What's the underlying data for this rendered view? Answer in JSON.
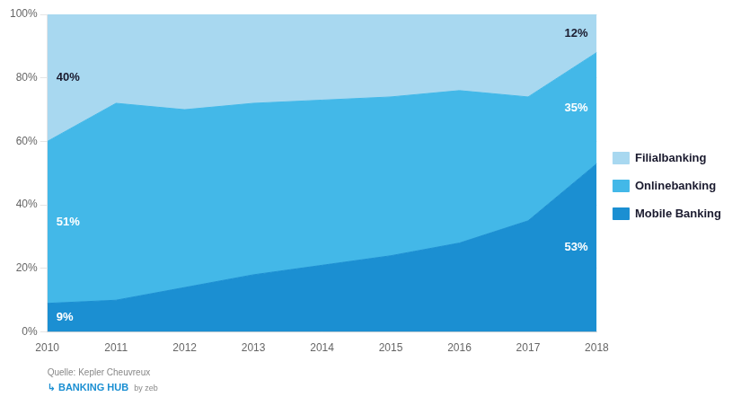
{
  "chart_data": {
    "type": "area",
    "stacked": true,
    "x": [
      2010,
      2011,
      2012,
      2013,
      2014,
      2015,
      2016,
      2017,
      2018
    ],
    "xlim": [
      2010,
      2018
    ],
    "xticks": [
      2010,
      2011,
      2012,
      2013,
      2014,
      2015,
      2016,
      2017,
      2018
    ],
    "ylim": [
      0,
      100
    ],
    "yticks": [
      {
        "value": 0,
        "label": "0%"
      },
      {
        "value": 20,
        "label": "20%"
      },
      {
        "value": 40,
        "label": "40%"
      },
      {
        "value": 60,
        "label": "60%"
      },
      {
        "value": 80,
        "label": "80%"
      },
      {
        "value": 100,
        "label": "100%"
      }
    ],
    "grid": true,
    "legend": "right",
    "series": [
      {
        "name": "Mobile Banking",
        "color": "#1B8FD2",
        "values": [
          9,
          10,
          14,
          18,
          21,
          24,
          28,
          35,
          53
        ],
        "value_labels": [
          "9%",
          null,
          null,
          null,
          null,
          null,
          null,
          null,
          "53%"
        ]
      },
      {
        "name": "Onlinebanking",
        "color": "#43B8E8",
        "values": [
          51,
          62,
          56,
          54,
          52,
          50,
          48,
          39,
          35
        ],
        "value_labels": [
          "51%",
          null,
          null,
          null,
          null,
          null,
          null,
          null,
          "35%"
        ]
      },
      {
        "name": "Filialbanking",
        "color": "#A8D8F0",
        "values": [
          40,
          28,
          30,
          28,
          27,
          26,
          24,
          26,
          12
        ],
        "value_labels": [
          "40%",
          null,
          null,
          null,
          null,
          null,
          null,
          null,
          "12%"
        ]
      }
    ],
    "annotations": [
      "Quelle: Kepler Cheuvreux",
      "↳ BANKING HUB",
      "by zeb"
    ]
  }
}
